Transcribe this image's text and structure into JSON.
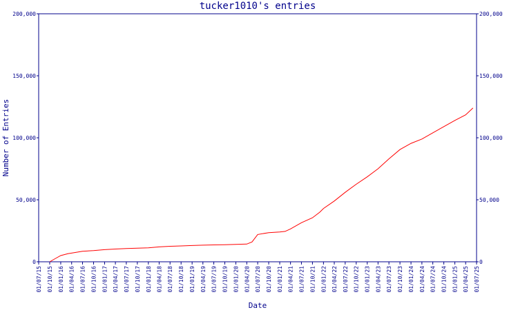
{
  "chart_data": {
    "type": "line",
    "title": "tucker1010's entries",
    "xlabel": "Date",
    "ylabel": "Number of Entries",
    "ylim": [
      0,
      200000
    ],
    "y_ticks": [
      0,
      50000,
      100000,
      150000,
      200000
    ],
    "y_tick_labels": [
      "0",
      "50,000",
      "100,000",
      "150,000",
      "200,000"
    ],
    "y_axis_right": true,
    "x_ticks": [
      "2015-07-01",
      "2015-10-01",
      "2016-01-01",
      "2016-04-01",
      "2016-07-01",
      "2016-10-01",
      "2017-01-01",
      "2017-04-01",
      "2017-07-01",
      "2017-10-01",
      "2018-01-01",
      "2018-04-01",
      "2018-07-01",
      "2018-10-01",
      "2019-01-01",
      "2019-04-01",
      "2019-07-01",
      "2019-10-01",
      "2020-01-01",
      "2020-04-01",
      "2020-07-01",
      "2020-10-01",
      "2021-01-01",
      "2021-04-01",
      "2021-07-01",
      "2021-10-01",
      "2022-01-01",
      "2022-04-01",
      "2022-07-01",
      "2022-10-01",
      "2023-01-01",
      "2023-04-01",
      "2023-07-01",
      "2023-10-01",
      "2024-01-01",
      "2024-04-01",
      "2024-07-01",
      "2024-10-01",
      "2025-01-01",
      "2025-04-01",
      "2025-07-01"
    ],
    "x_tick_labels": [
      "01/07/15",
      "01/10/15",
      "01/01/16",
      "01/04/16",
      "01/07/16",
      "01/10/16",
      "01/01/17",
      "01/04/17",
      "01/07/17",
      "01/10/17",
      "01/01/18",
      "01/04/18",
      "01/07/18",
      "01/10/18",
      "01/01/19",
      "01/04/19",
      "01/07/19",
      "01/10/19",
      "01/01/20",
      "01/04/20",
      "01/07/20",
      "01/10/20",
      "01/01/21",
      "01/04/21",
      "01/07/21",
      "01/10/21",
      "01/01/22",
      "01/04/22",
      "01/07/22",
      "01/10/22",
      "01/01/23",
      "01/04/23",
      "01/07/23",
      "01/10/23",
      "01/01/24",
      "01/04/24",
      "01/07/24",
      "01/10/24",
      "01/01/25",
      "01/04/25",
      "01/07/25"
    ],
    "grid": false,
    "series": [
      {
        "color": "#ff0000",
        "points": [
          [
            "2015-10-01",
            0
          ],
          [
            "2015-11-15",
            2500
          ],
          [
            "2016-01-01",
            5000
          ],
          [
            "2016-03-01",
            6500
          ],
          [
            "2016-05-01",
            7500
          ],
          [
            "2016-07-01",
            8500
          ],
          [
            "2016-10-01",
            9000
          ],
          [
            "2017-01-01",
            9800
          ],
          [
            "2017-04-01",
            10300
          ],
          [
            "2017-07-01",
            10700
          ],
          [
            "2017-10-01",
            11000
          ],
          [
            "2018-01-01",
            11300
          ],
          [
            "2018-04-01",
            12000
          ],
          [
            "2018-07-01",
            12500
          ],
          [
            "2018-10-01",
            12800
          ],
          [
            "2019-01-01",
            13100
          ],
          [
            "2019-04-01",
            13400
          ],
          [
            "2019-07-01",
            13600
          ],
          [
            "2019-10-01",
            13800
          ],
          [
            "2020-01-01",
            14000
          ],
          [
            "2020-04-01",
            14300
          ],
          [
            "2020-05-15",
            16000
          ],
          [
            "2020-07-01",
            22000
          ],
          [
            "2020-10-01",
            23500
          ],
          [
            "2021-01-01",
            24000
          ],
          [
            "2021-02-15",
            24500
          ],
          [
            "2021-04-01",
            26500
          ],
          [
            "2021-07-01",
            31500
          ],
          [
            "2021-10-01",
            35500
          ],
          [
            "2021-12-01",
            40000
          ],
          [
            "2022-01-01",
            43000
          ],
          [
            "2022-04-01",
            49000
          ],
          [
            "2022-07-01",
            56000
          ],
          [
            "2022-10-01",
            62500
          ],
          [
            "2023-01-01",
            68500
          ],
          [
            "2023-04-01",
            75000
          ],
          [
            "2023-07-01",
            83000
          ],
          [
            "2023-10-01",
            90500
          ],
          [
            "2024-01-01",
            95500
          ],
          [
            "2024-04-01",
            99000
          ],
          [
            "2024-07-01",
            104000
          ],
          [
            "2024-10-01",
            109000
          ],
          [
            "2025-01-01",
            114000
          ],
          [
            "2025-04-01",
            118500
          ],
          [
            "2025-06-01",
            124000
          ]
        ]
      }
    ]
  }
}
